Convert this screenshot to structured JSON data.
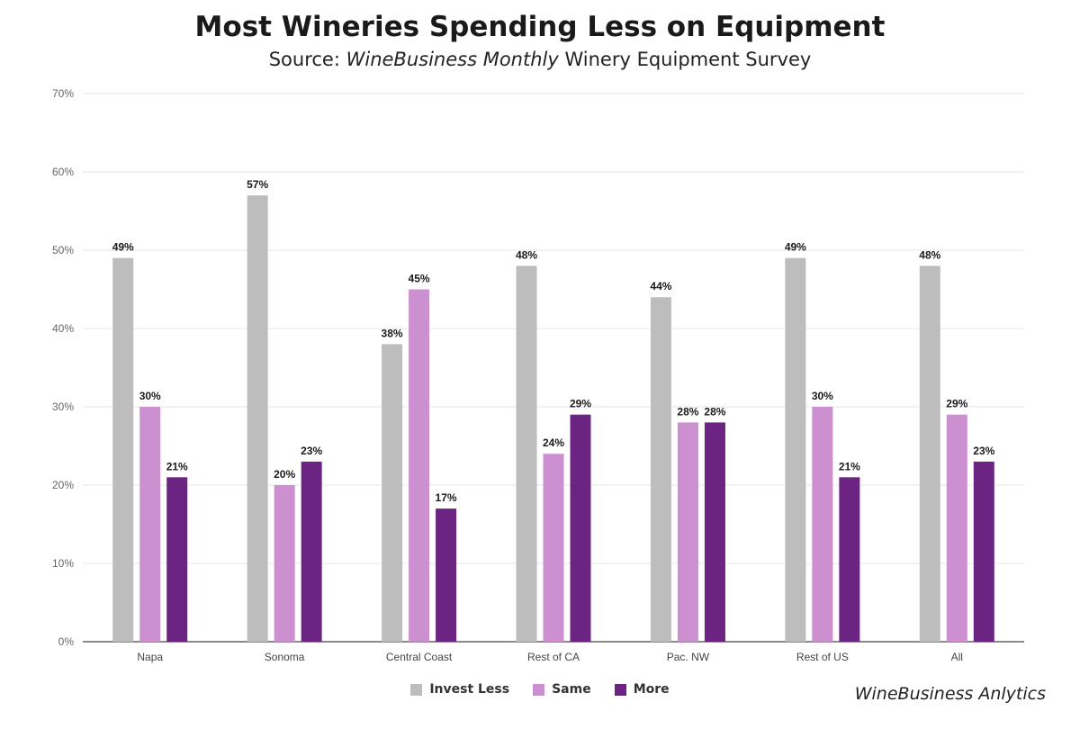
{
  "chart_data": {
    "type": "bar",
    "title": "Most Wineries Spending Less on Equipment",
    "subtitle_prefix": "Source: ",
    "subtitle_italic": "WineBusiness Monthly",
    "subtitle_suffix": " Winery Equipment Survey",
    "categories": [
      "Napa",
      "Sonoma",
      "Central Coast",
      "Rest of CA",
      "Pac. NW",
      "Rest of US",
      "All"
    ],
    "series": [
      {
        "name": "Invest Less",
        "color": "#bdbdbd",
        "values": [
          49,
          57,
          38,
          48,
          44,
          49,
          48
        ]
      },
      {
        "name": "Same",
        "color": "#cc8fd0",
        "values": [
          30,
          20,
          45,
          24,
          28,
          30,
          29
        ]
      },
      {
        "name": "More",
        "color": "#6b2481",
        "values": [
          21,
          23,
          17,
          29,
          28,
          21,
          23
        ]
      }
    ],
    "data_label_suffix": "%",
    "ylim": [
      0,
      70
    ],
    "yticks": [
      "0%",
      "10%",
      "20%",
      "30%",
      "40%",
      "50%",
      "60%",
      "70%"
    ],
    "grid": true,
    "legend_position": "bottom-center"
  },
  "credit": "WineBusiness Anlytics"
}
